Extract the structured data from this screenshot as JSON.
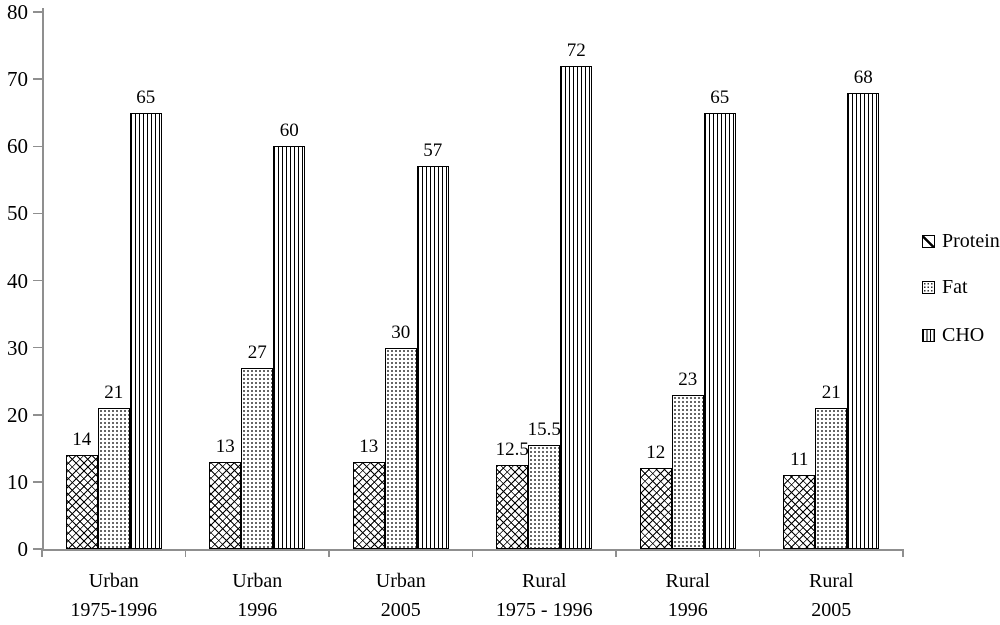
{
  "chart_data": {
    "type": "bar",
    "title": "",
    "xlabel": "",
    "ylabel": "",
    "ylim": [
      0,
      80
    ],
    "yticks": [
      0,
      10,
      20,
      30,
      40,
      50,
      60,
      70,
      80
    ],
    "grid": false,
    "legend_position": "right",
    "bar_value_labels": true,
    "categories": [
      {
        "line1": "Urban",
        "line2": "1975-1996"
      },
      {
        "line1": "Urban",
        "line2": "1996"
      },
      {
        "line1": "Urban",
        "line2": "2005"
      },
      {
        "line1": "Rural",
        "line2": "1975 - 1996"
      },
      {
        "line1": "Rural",
        "line2": "1996"
      },
      {
        "line1": "Rural",
        "line2": "2005"
      }
    ],
    "series": [
      {
        "name": "Protein",
        "pattern": "crosshatch",
        "values": [
          14,
          13,
          13,
          12.5,
          12,
          11
        ]
      },
      {
        "name": "Fat",
        "pattern": "dots",
        "values": [
          21,
          27,
          30,
          15.5,
          23,
          21
        ]
      },
      {
        "name": "CHO",
        "pattern": "vlines",
        "values": [
          65,
          60,
          57,
          72,
          65,
          68
        ]
      }
    ],
    "colors": {
      "axis": "#8f8f8f",
      "bar_border": "#000000",
      "bar_fill": "#ffffff",
      "text": "#000000",
      "background": "#ffffff"
    }
  },
  "legend": {
    "items": [
      {
        "label": "Protein",
        "icon": "crosshatch-swatch"
      },
      {
        "label": "Fat",
        "icon": "dots-swatch"
      },
      {
        "label": "CHO",
        "icon": "vlines-swatch"
      }
    ]
  }
}
